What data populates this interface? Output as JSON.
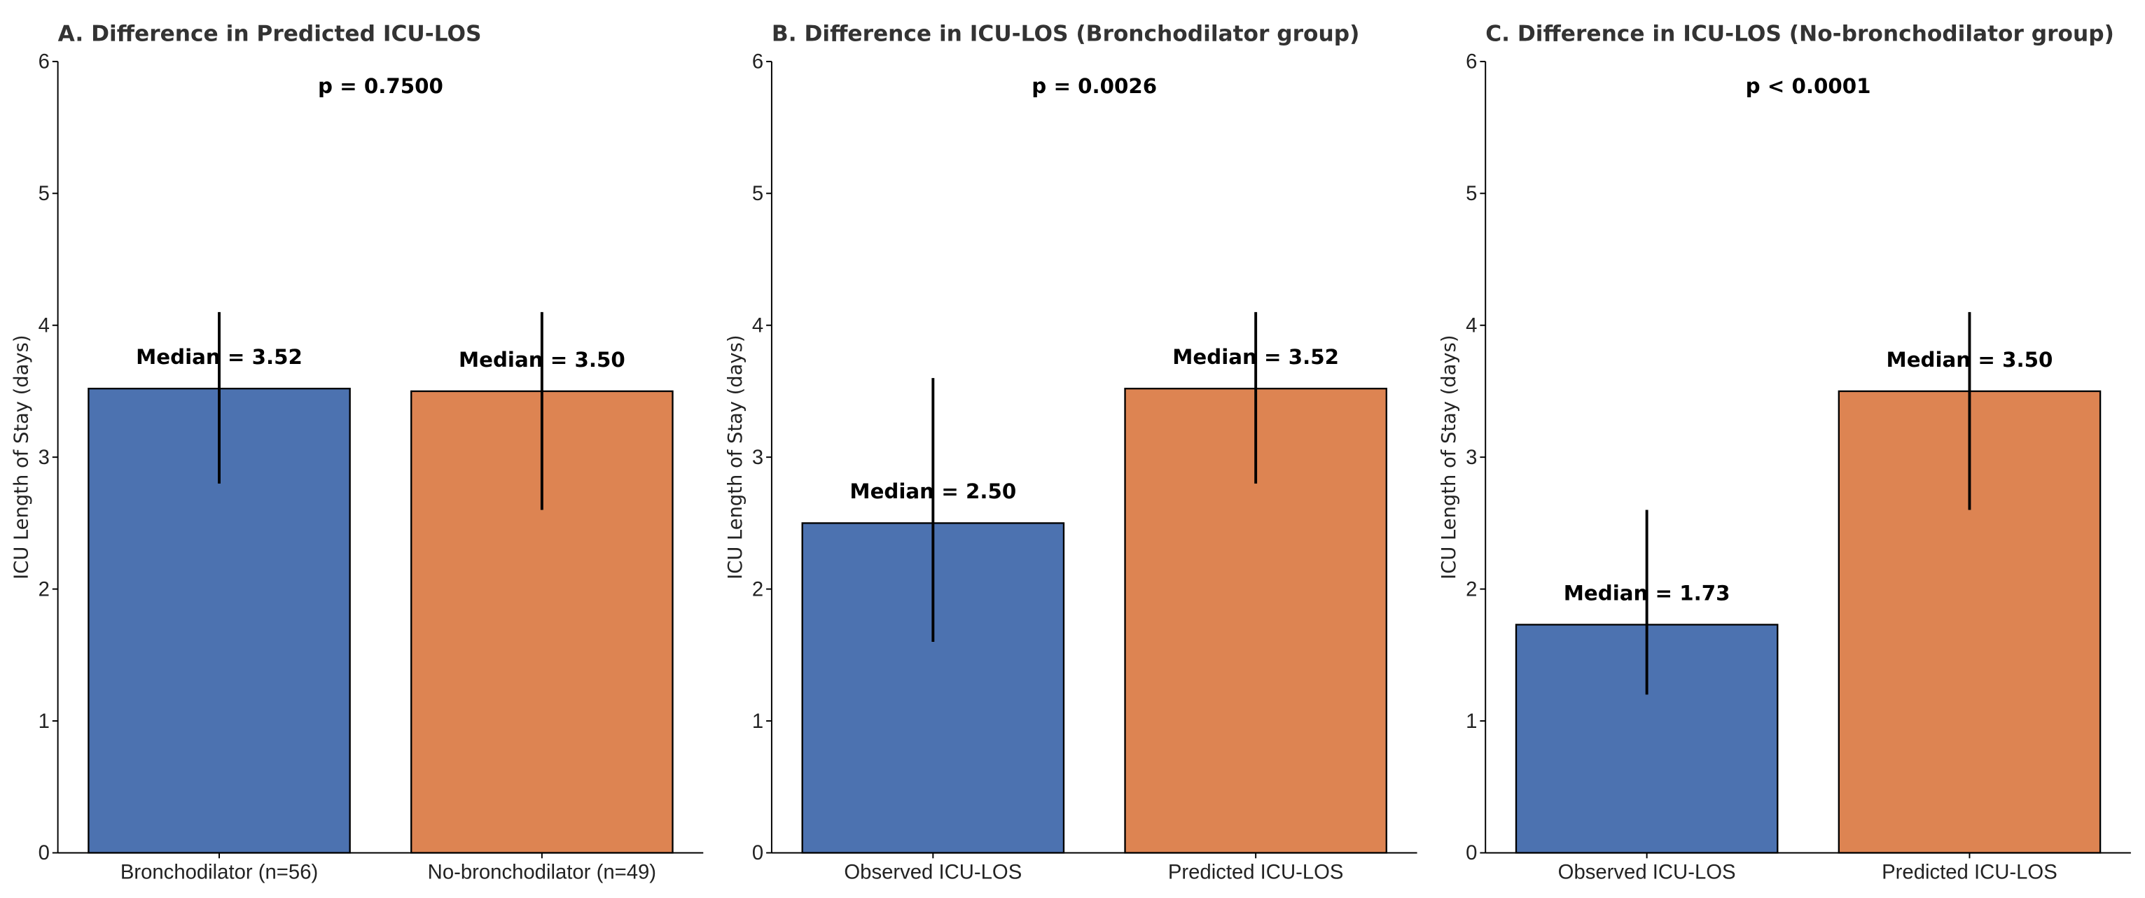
{
  "chart_data": [
    {
      "type": "bar",
      "title": "A. Difference in Predicted ICU-LOS",
      "annotation": "p = 0.7500",
      "y_label": "ICU Length of Stay (days)",
      "categories": [
        "Bronchodilator (n=56)",
        "No-bronchodilator (n=49)"
      ],
      "values": [
        3.52,
        3.5
      ],
      "value_labels": [
        "Median = 3.52",
        "Median = 3.50"
      ],
      "lower": [
        2.8,
        2.6
      ],
      "upper": [
        4.1,
        4.1
      ],
      "colors": [
        "#4c72b0",
        "#dd8452"
      ],
      "ylim": [
        0,
        6
      ],
      "yticks": [
        0,
        1,
        2,
        3,
        4,
        5,
        6
      ]
    },
    {
      "type": "bar",
      "title": "B. Difference in ICU-LOS (Bronchodilator group)",
      "annotation": "p = 0.0026",
      "y_label": "ICU Length of Stay (days)",
      "categories": [
        "Observed ICU-LOS",
        "Predicted ICU-LOS"
      ],
      "values": [
        2.5,
        3.52
      ],
      "value_labels": [
        "Median = 2.50",
        "Median = 3.52"
      ],
      "lower": [
        1.6,
        2.8
      ],
      "upper": [
        3.6,
        4.1
      ],
      "colors": [
        "#4c72b0",
        "#dd8452"
      ],
      "ylim": [
        0,
        6
      ],
      "yticks": [
        0,
        1,
        2,
        3,
        4,
        5,
        6
      ]
    },
    {
      "type": "bar",
      "title": "C. Difference in ICU-LOS (No-bronchodilator group)",
      "annotation": "p < 0.0001",
      "y_label": "ICU Length of Stay (days)",
      "categories": [
        "Observed ICU-LOS",
        "Predicted ICU-LOS"
      ],
      "values": [
        1.73,
        3.5
      ],
      "value_labels": [
        "Median = 1.73",
        "Median = 3.50"
      ],
      "lower": [
        1.2,
        2.6
      ],
      "upper": [
        2.6,
        4.1
      ],
      "colors": [
        "#4c72b0",
        "#dd8452"
      ],
      "ylim": [
        0,
        6
      ],
      "yticks": [
        0,
        1,
        2,
        3,
        4,
        5,
        6
      ]
    }
  ]
}
